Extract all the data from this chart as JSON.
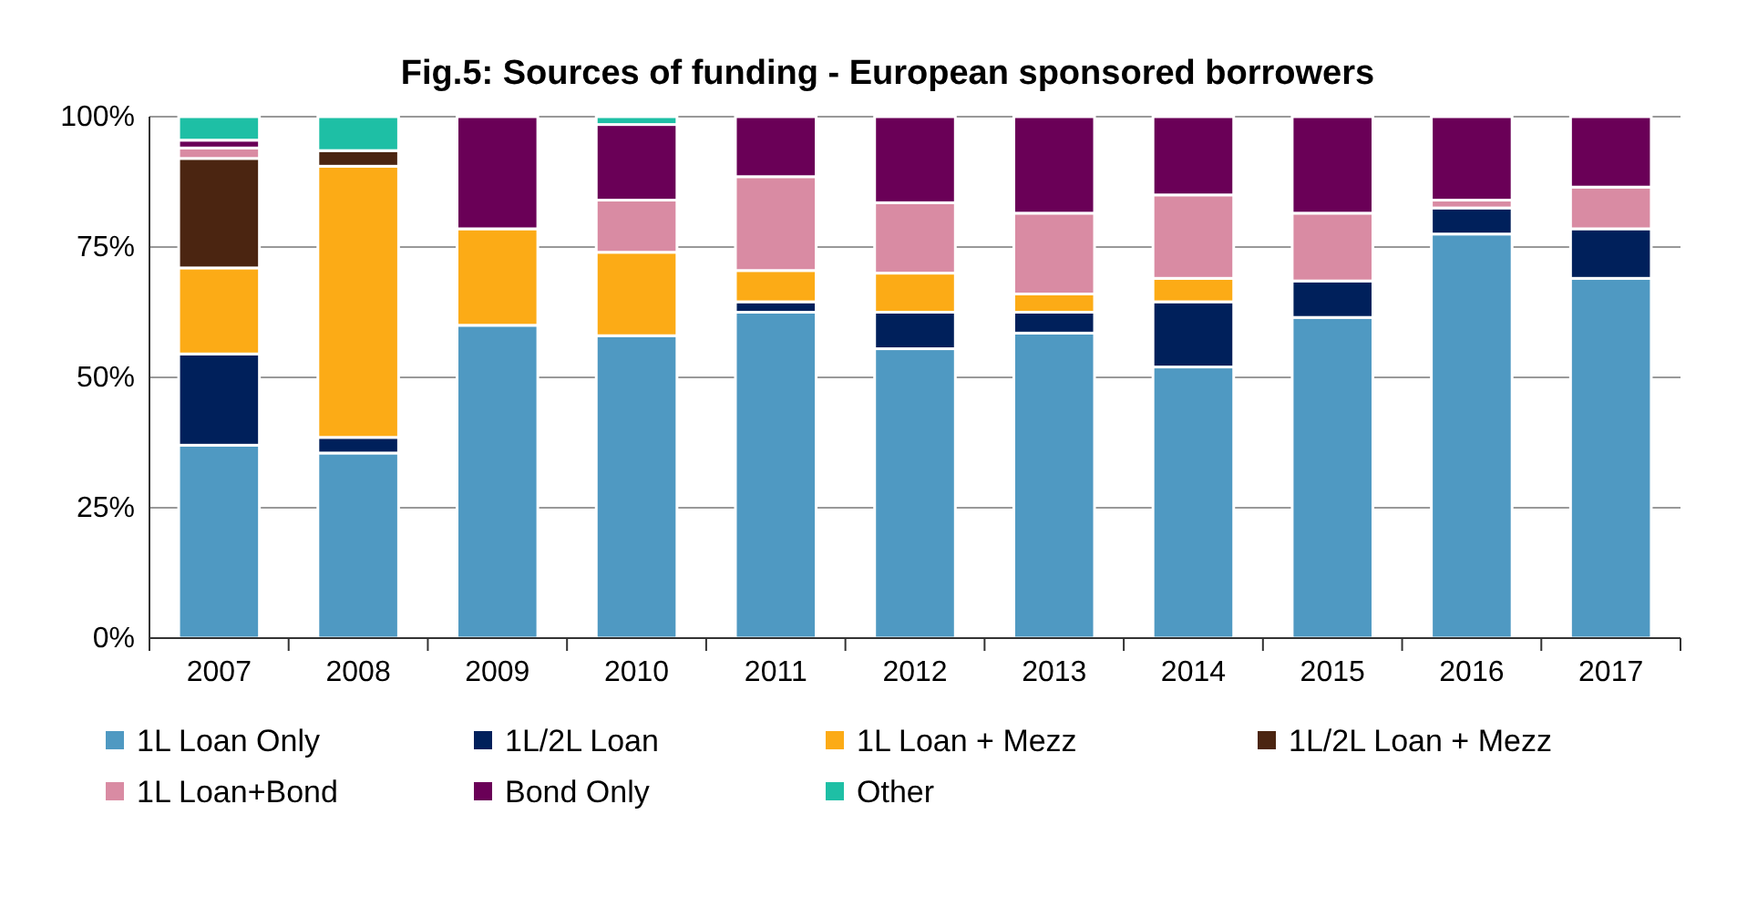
{
  "chart_data": {
    "type": "bar",
    "title": "Fig.5: Sources of funding - European sponsored borrowers",
    "categories": [
      "2007",
      "2008",
      "2009",
      "2010",
      "2011",
      "2012",
      "2013",
      "2014",
      "2015",
      "2016",
      "2017"
    ],
    "stacked": true,
    "ylim": [
      0,
      100
    ],
    "yticks": [
      {
        "value": 0,
        "label": "0%"
      },
      {
        "value": 25,
        "label": "25%"
      },
      {
        "value": 50,
        "label": "50%"
      },
      {
        "value": 75,
        "label": "75%"
      },
      {
        "value": 100,
        "label": "100%"
      }
    ],
    "grid": "y",
    "legend": "bottom",
    "series": [
      {
        "name": "1L Loan Only",
        "color": "#4f99c2",
        "values": [
          37,
          35.5,
          60,
          58,
          62.5,
          55.5,
          58.5,
          52,
          61.5,
          77.5,
          69
        ]
      },
      {
        "name": "1L/2L Loan",
        "color": "#00205b",
        "values": [
          17.5,
          3,
          0,
          0,
          2,
          7,
          4,
          12.5,
          7,
          5,
          9.5
        ]
      },
      {
        "name": "1L Loan + Mezz",
        "color": "#fcab16",
        "values": [
          16.5,
          52,
          18.5,
          16,
          6,
          7.5,
          3.5,
          4.5,
          0,
          0,
          0
        ]
      },
      {
        "name": "1L/2L Loan + Mezz",
        "color": "#4b2511",
        "values": [
          21,
          3,
          0,
          0,
          0,
          0,
          0,
          0,
          0,
          0,
          0
        ]
      },
      {
        "name": "1L Loan+Bond",
        "color": "#d98ba3",
        "values": [
          2,
          0,
          0,
          10,
          18,
          13.5,
          15.5,
          16,
          13,
          1.5,
          8
        ]
      },
      {
        "name": "Bond Only",
        "color": "#6a0057",
        "values": [
          1.5,
          0,
          21.5,
          14.5,
          11.5,
          16.5,
          18.5,
          15,
          18.5,
          16,
          13.5
        ]
      },
      {
        "name": "Other",
        "color": "#1ebfa5",
        "values": [
          4.5,
          6.5,
          0,
          1.5,
          0,
          0,
          0,
          0,
          0,
          0,
          0
        ]
      }
    ]
  }
}
